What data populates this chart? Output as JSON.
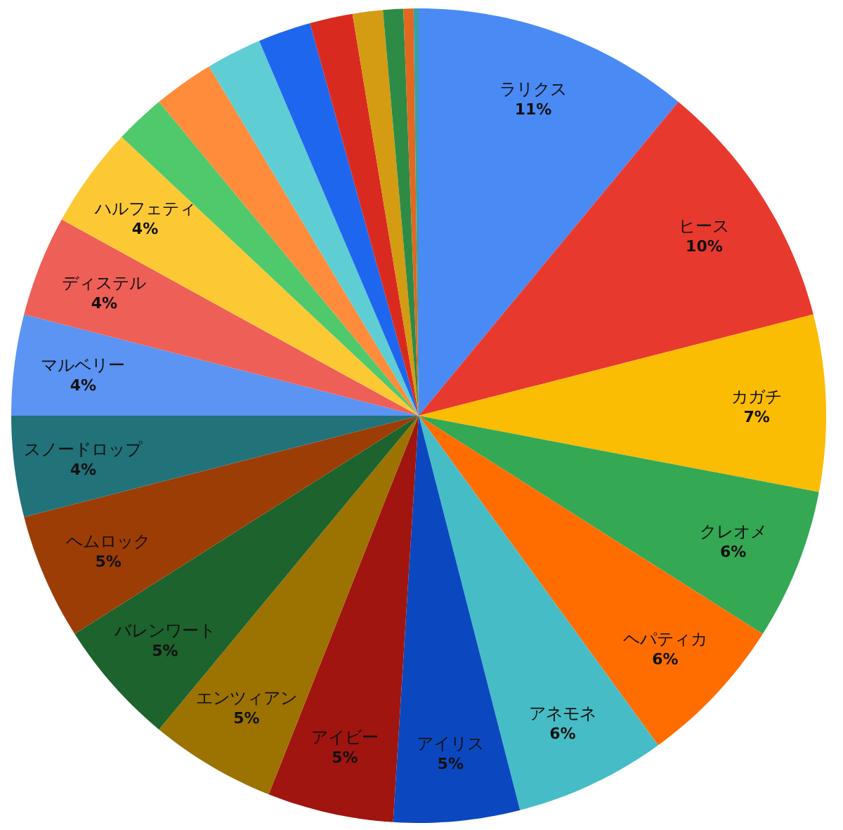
{
  "chart_data": {
    "type": "pie",
    "categories": [
      "ラリクス",
      "ヒース",
      "カガチ",
      "クレオメ",
      "ヘパティカ",
      "アネモネ",
      "アイリス",
      "アイビー",
      "エンツィアン",
      "バレンワート",
      "ヘムロック",
      "スノードロップ",
      "マルベリー",
      "ディステル",
      "ハルフェティ",
      null,
      null,
      null,
      null,
      null,
      null,
      null,
      null,
      null
    ],
    "values": [
      11,
      10,
      7,
      6,
      6,
      6,
      5,
      5,
      5,
      5,
      5,
      4,
      4,
      4,
      4,
      2.0,
      2.4,
      2.2,
      2.1,
      1.7,
      1.2,
      0.8,
      0.4,
      0.2
    ],
    "value_labels": [
      "11%",
      "10%",
      "7%",
      "6%",
      "6%",
      "6%",
      "5%",
      "5%",
      "5%",
      "5%",
      "5%",
      "4%",
      "4%",
      "4%",
      "4%",
      null,
      null,
      null,
      null,
      null,
      null,
      null,
      null,
      null
    ],
    "colors": [
      "#4a8af4",
      "#e8392e",
      "#fbbc04",
      "#34a853",
      "#ff6d01",
      "#46bdc6",
      "#0b48c0",
      "#a0150f",
      "#9c7200",
      "#1c632d",
      "#9c3d06",
      "#22727a",
      "#5b94f2",
      "#ee5f57",
      "#fcc934",
      "#4fc96b",
      "#ff8c3a",
      "#5ecdd4",
      "#1f66ee",
      "#d92a20",
      "#d39c12",
      "#2e8b46",
      "#e06820",
      "#3aa0a8"
    ]
  }
}
